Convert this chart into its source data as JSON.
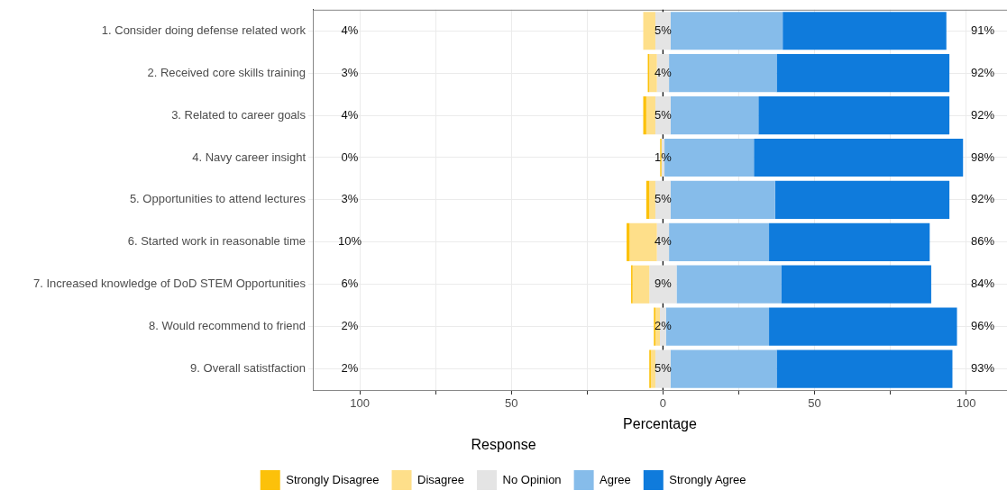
{
  "chart_data": {
    "type": "bar",
    "orientation": "horizontal",
    "xlabel": "Percentage",
    "legend_title": "Response",
    "legend": "bottom",
    "grid": true,
    "categories": [
      "1. Consider doing defense related work",
      "2. Received core skills training",
      "3. Related to career goals",
      "4. Navy career insight",
      "5. Opportunities to attend lectures",
      "6. Started work in reasonable time",
      "7. Increased knowledge of DoD STEM Opportunities",
      "8. Would recommend to friend",
      "9. Overall satistfaction"
    ],
    "series": [
      {
        "name": "Strongly Disagree",
        "color": "#fcc10a",
        "values": [
          null,
          0.5,
          1,
          0.4,
          1,
          1,
          0.5,
          0.5,
          0.5
        ],
        "base": [
          null,
          -5,
          -6.5,
          -0.9,
          -5.5,
          -12,
          -10.5,
          -3,
          -4.5
        ]
      },
      {
        "name": "Disagree",
        "color": "#fedf8a",
        "values": [
          4,
          2.5,
          3,
          null,
          2,
          9,
          5.5,
          1.5,
          1.5
        ],
        "base": [
          -6.5,
          -4.5,
          -5.5,
          null,
          -4.5,
          -11,
          -10,
          -2.5,
          -4
        ]
      },
      {
        "name": "No Opinion",
        "color": "#e4e4e4",
        "values": [
          5,
          4,
          5,
          1,
          5,
          4,
          9,
          2,
          5
        ],
        "base": [
          -2.5,
          -2,
          -2.5,
          -0.5,
          -2.5,
          -2,
          -4.5,
          -1,
          -2.5
        ]
      },
      {
        "name": "Agree",
        "color": "#86bcea",
        "values": [
          37,
          35.5,
          29,
          29.5,
          34.5,
          33,
          34.5,
          34,
          35
        ],
        "base": [
          2.5,
          2,
          2.5,
          0.5,
          2.5,
          2,
          4.5,
          1,
          2.5
        ]
      },
      {
        "name": "Strongly Agree",
        "color": "#0f7bdc",
        "values": [
          54,
          57,
          63,
          69,
          57.5,
          53,
          49.5,
          62,
          58
        ],
        "base": [
          39.5,
          37.5,
          31.5,
          30,
          37,
          35,
          39,
          35,
          37.5
        ]
      }
    ],
    "xlim": [
      -115.5,
      113.5
    ],
    "xticks": [
      {
        "value": -100,
        "label": "100"
      },
      {
        "value": -75,
        "label": null
      },
      {
        "value": -50,
        "label": "50"
      },
      {
        "value": -25,
        "label": null
      },
      0,
      {
        "value": 25,
        "label": null
      },
      50,
      {
        "value": 75,
        "label": null
      },
      100
    ],
    "ref_lines": [
      {
        "axis": "x",
        "value": 0,
        "color": "#000000"
      }
    ],
    "annotations": [
      "4%",
      "3%",
      "4%",
      "0%",
      "3%",
      "10%",
      "6%",
      "2%",
      "2%",
      "5%",
      "4%",
      "5%",
      "1%",
      "5%",
      "4%",
      "9%",
      "2%",
      "5%",
      "91%",
      "92%",
      "92%",
      "98%",
      "92%",
      "86%",
      "84%",
      "96%",
      "93%"
    ]
  }
}
